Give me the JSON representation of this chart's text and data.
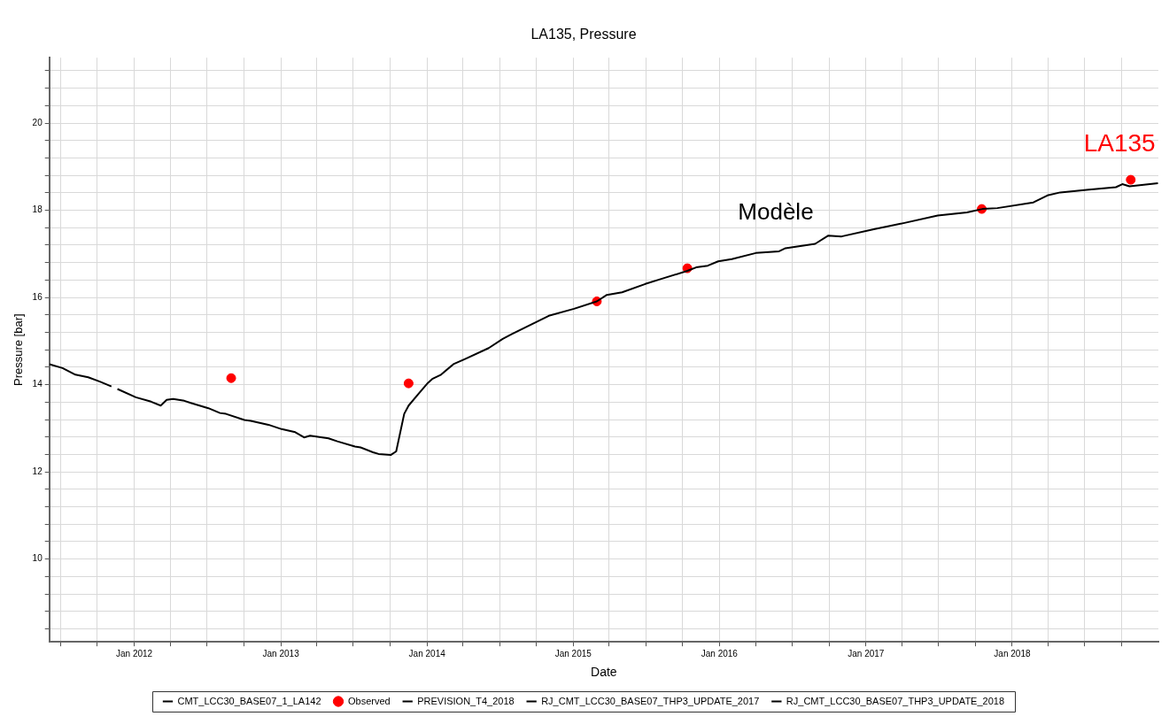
{
  "chart_data": {
    "type": "line",
    "title": "LA135, Pressure",
    "xlabel": "Date",
    "ylabel": "Pressure [bar]",
    "xlim": [
      "2011-06-03",
      "2019-01-01"
    ],
    "ylim": [
      8.1,
      21.5
    ],
    "xticks": [
      {
        "value": "2011-07-01",
        "label": null
      },
      {
        "value": "2011-10-01",
        "label": null
      },
      {
        "value": "2012-01-01",
        "label": "Jan 2012"
      },
      {
        "value": "2012-04-01",
        "label": null
      },
      {
        "value": "2012-07-01",
        "label": null
      },
      {
        "value": "2012-10-01",
        "label": null
      },
      {
        "value": "2013-01-01",
        "label": "Jan 2013"
      },
      {
        "value": "2013-04-01",
        "label": null
      },
      {
        "value": "2013-07-01",
        "label": null
      },
      {
        "value": "2013-10-01",
        "label": null
      },
      {
        "value": "2014-01-01",
        "label": "Jan 2014"
      },
      {
        "value": "2014-04-01",
        "label": null
      },
      {
        "value": "2014-07-01",
        "label": null
      },
      {
        "value": "2014-10-01",
        "label": null
      },
      {
        "value": "2015-01-01",
        "label": "Jan 2015"
      },
      {
        "value": "2015-04-01",
        "label": null
      },
      {
        "value": "2015-07-01",
        "label": null
      },
      {
        "value": "2015-10-01",
        "label": null
      },
      {
        "value": "2016-01-01",
        "label": "Jan 2016"
      },
      {
        "value": "2016-04-01",
        "label": null
      },
      {
        "value": "2016-07-01",
        "label": null
      },
      {
        "value": "2016-10-01",
        "label": null
      },
      {
        "value": "2017-01-01",
        "label": "Jan 2017"
      },
      {
        "value": "2017-04-01",
        "label": null
      },
      {
        "value": "2017-07-01",
        "label": null
      },
      {
        "value": "2017-10-01",
        "label": null
      },
      {
        "value": "2018-01-01",
        "label": "Jan 2018"
      },
      {
        "value": "2018-04-01",
        "label": null
      },
      {
        "value": "2018-07-01",
        "label": null
      },
      {
        "value": "2018-10-01",
        "label": null
      }
    ],
    "yticks": [
      {
        "value": 8.4,
        "label": null
      },
      {
        "value": 8.8,
        "label": null
      },
      {
        "value": 9.2,
        "label": null
      },
      {
        "value": 9.6,
        "label": null
      },
      10,
      {
        "value": 10.4,
        "label": null
      },
      {
        "value": 10.8,
        "label": null
      },
      {
        "value": 11.2,
        "label": null
      },
      {
        "value": 11.6,
        "label": null
      },
      12,
      {
        "value": 12.4,
        "label": null
      },
      {
        "value": 12.8,
        "label": null
      },
      {
        "value": 13.2,
        "label": null
      },
      {
        "value": 13.6,
        "label": null
      },
      14,
      {
        "value": 14.4,
        "label": null
      },
      {
        "value": 14.8,
        "label": null
      },
      {
        "value": 15.2,
        "label": null
      },
      {
        "value": 15.6,
        "label": null
      },
      16,
      {
        "value": 16.4,
        "label": null
      },
      {
        "value": 16.8,
        "label": null
      },
      {
        "value": 17.2,
        "label": null
      },
      {
        "value": 17.6,
        "label": null
      },
      18,
      {
        "value": 18.4,
        "label": null
      },
      {
        "value": 18.8,
        "label": null
      },
      {
        "value": 19.2,
        "label": null
      },
      {
        "value": 19.6,
        "label": null
      },
      20,
      {
        "value": 20.4,
        "label": null
      },
      {
        "value": 20.8,
        "label": null
      },
      {
        "value": 21.2,
        "label": null
      }
    ],
    "grid": true,
    "legend": "bottom",
    "marker": "none",
    "line_style": "solid",
    "annotations": [
      "Modèle",
      "LA135"
    ],
    "series": [
      {
        "name": "CMT_LCC30_BASE07_1_LA142",
        "color": "#000000",
        "x": [
          "2011-06-03",
          "2011-07-06",
          "2011-08-07",
          "2011-09-08",
          "2011-10-07",
          "2011-11-05",
          "2011-11-12",
          "2011-11-20",
          "2012-01-05",
          "2012-02-12",
          "2012-03-07",
          "2012-03-22",
          "2012-04-07",
          "2012-05-05",
          "2012-05-21",
          "2012-07-04",
          "2012-08-02",
          "2012-08-17",
          "2012-10-02",
          "2012-10-18",
          "2012-12-01",
          "2013-01-03",
          "2013-02-06",
          "2013-02-28",
          "2013-03-15",
          "2013-04-30",
          "2013-05-22",
          "2013-07-05",
          "2013-07-19",
          "2013-08-19",
          "2013-09-02",
          "2013-10-03",
          "2013-10-16",
          "2013-11-05",
          "2013-11-16",
          "2013-12-09",
          "2014-01-03",
          "2014-01-14",
          "2014-02-05",
          "2014-03-08",
          "2014-04-06",
          "2014-06-04",
          "2014-07-09",
          "2014-08-01",
          "2014-09-25",
          "2014-11-01",
          "2015-01-03",
          "2015-03-01",
          "2015-03-26",
          "2015-05-03",
          "2015-06-30",
          "2015-08-07",
          "2015-10-13",
          "2015-11-04",
          "2015-12-03",
          "2015-12-29",
          "2016-02-01",
          "2016-04-01",
          "2016-05-29",
          "2016-06-14",
          "2016-08-27",
          "2016-09-29",
          "2016-11-01",
          "2017-01-23",
          "2017-04-07",
          "2017-06-29",
          "2017-09-10",
          "2017-10-19",
          "2017-11-25",
          "2018-02-23",
          "2018-03-30",
          "2018-05-01",
          "2018-07-06",
          "2018-09-17",
          "2018-10-03",
          "2018-10-21",
          "2018-12-31"
        ],
        "values": [
          14.47,
          14.38,
          14.23,
          14.17,
          14.07,
          13.96,
          null,
          13.9,
          13.71,
          13.61,
          13.52,
          13.65,
          13.67,
          13.63,
          13.58,
          13.46,
          13.35,
          13.33,
          13.19,
          13.17,
          13.08,
          12.98,
          12.91,
          12.79,
          12.83,
          12.77,
          12.7,
          12.58,
          12.56,
          12.45,
          12.41,
          12.39,
          12.47,
          13.33,
          13.52,
          13.77,
          14.04,
          14.13,
          14.23,
          14.47,
          14.59,
          14.84,
          15.05,
          15.16,
          15.41,
          15.58,
          15.74,
          15.91,
          16.06,
          16.12,
          16.31,
          16.42,
          16.61,
          16.69,
          16.73,
          16.83,
          16.88,
          17.02,
          17.06,
          17.13,
          17.23,
          17.42,
          17.4,
          17.57,
          17.71,
          17.88,
          17.95,
          18.03,
          18.05,
          18.18,
          18.34,
          18.41,
          18.47,
          18.53,
          18.6,
          18.55,
          18.62
        ]
      },
      {
        "name": "Observed",
        "color": "#ff0000",
        "type": "scatter",
        "marker": "circle",
        "x": [
          "2012-08-30",
          "2013-11-16",
          "2015-03-01",
          "2015-10-13",
          "2017-10-17",
          "2018-10-24"
        ],
        "values": [
          14.15,
          14.03,
          15.91,
          16.67,
          18.03,
          18.7
        ]
      },
      {
        "name": "PREVISION_T4_2018",
        "color": "#000000"
      },
      {
        "name": "RJ_CMT_LCC30_BASE07_THP3_UPDATE_2017",
        "color": "#000000"
      },
      {
        "name": "RJ_CMT_LCC30_BASE07_THP3_UPDATE_2018",
        "color": "#000000"
      }
    ]
  }
}
